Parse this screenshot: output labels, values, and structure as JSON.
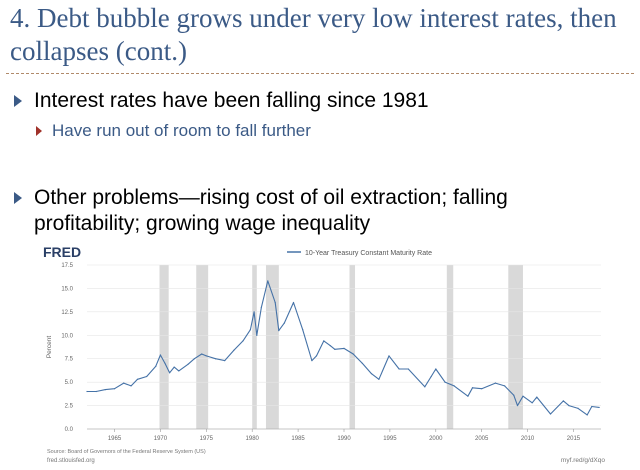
{
  "slide": {
    "title": "4. Debt bubble grows under very low interest rates, then collapses (cont.)",
    "bullets": [
      {
        "level": 1,
        "text": "Interest rates have been falling since 1981"
      },
      {
        "level": 2,
        "text": "Have run out of room to fall further"
      },
      {
        "level": 1,
        "text": "Other problems—rising cost of oil extraction; falling profitability; growing wage inequality"
      }
    ],
    "colors": {
      "title": "#3b5a86",
      "accent_arrow": "#a0322a",
      "series": "#4572a7",
      "recession": "#d9d9d9"
    }
  },
  "chart_data": {
    "type": "line",
    "brand": "FRED",
    "legend": "10-Year Treasury Constant Maturity Rate",
    "legend_position": "top-center",
    "ylabel": "Percent",
    "xlabel": "",
    "ylim": [
      0,
      17.5
    ],
    "xlim": [
      1962,
      2018
    ],
    "y_ticks": [
      "0.0",
      "2.5",
      "5.0",
      "7.5",
      "10.0",
      "12.5",
      "15.0",
      "17.5"
    ],
    "x_ticks": [
      "1965",
      "1970",
      "1975",
      "1980",
      "1985",
      "1990",
      "1995",
      "2000",
      "2005",
      "2010",
      "2015"
    ],
    "grid": true,
    "source": "Source: Board of Governors of the Federal Reserve System (US)",
    "site": "fred.stlouisfed.org",
    "short_url": "myf.red/g/dXqo",
    "recessions": [
      [
        1969.9,
        1970.9
      ],
      [
        1973.9,
        1975.2
      ],
      [
        1980.0,
        1980.5
      ],
      [
        1981.5,
        1982.9
      ],
      [
        1990.6,
        1991.2
      ],
      [
        2001.2,
        2001.9
      ],
      [
        2007.9,
        2009.5
      ]
    ],
    "series": [
      {
        "name": "10-Year Treasury Constant Maturity Rate",
        "x": [
          1962.0,
          1963.0,
          1964.0,
          1965.0,
          1966.0,
          1966.8,
          1967.5,
          1968.5,
          1969.5,
          1970.0,
          1970.5,
          1971.0,
          1971.5,
          1972.0,
          1973.0,
          1973.7,
          1974.5,
          1975.0,
          1976.0,
          1977.0,
          1978.0,
          1979.0,
          1979.8,
          1980.2,
          1980.5,
          1981.0,
          1981.7,
          1982.5,
          1982.9,
          1983.5,
          1984.5,
          1985.5,
          1986.5,
          1987.0,
          1987.8,
          1988.5,
          1989.0,
          1990.0,
          1991.0,
          1992.0,
          1993.0,
          1993.8,
          1994.9,
          1996.0,
          1997.0,
          1998.8,
          1999.5,
          2000.0,
          2001.0,
          2002.0,
          2003.5,
          2004.0,
          2005.0,
          2006.5,
          2007.5,
          2008.5,
          2008.9,
          2009.5,
          2010.5,
          2011.0,
          2012.5,
          2013.9,
          2014.5,
          2015.5,
          2016.5,
          2017.0,
          2017.8
        ],
        "values": [
          4.0,
          4.0,
          4.2,
          4.3,
          4.9,
          4.6,
          5.3,
          5.6,
          6.7,
          7.9,
          7.0,
          6.0,
          6.6,
          6.2,
          6.9,
          7.5,
          8.0,
          7.8,
          7.5,
          7.3,
          8.4,
          9.4,
          10.6,
          12.5,
          10.0,
          13.0,
          15.8,
          13.5,
          10.5,
          11.3,
          13.5,
          10.6,
          7.3,
          7.8,
          9.4,
          8.9,
          8.5,
          8.6,
          8.0,
          7.0,
          5.9,
          5.3,
          7.8,
          6.4,
          6.4,
          4.5,
          5.6,
          6.4,
          5.0,
          4.6,
          3.5,
          4.4,
          4.3,
          4.9,
          4.6,
          3.6,
          2.5,
          3.5,
          2.8,
          3.4,
          1.6,
          3.0,
          2.5,
          2.2,
          1.5,
          2.4,
          2.3
        ]
      }
    ]
  }
}
